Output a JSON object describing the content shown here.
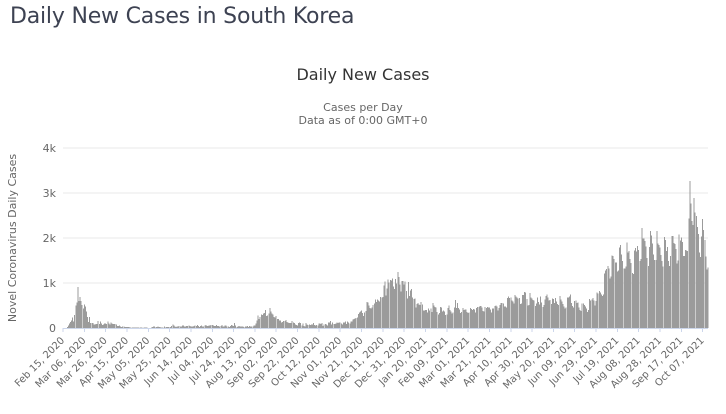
{
  "page": {
    "title": "Daily New Cases in South Korea"
  },
  "colors": {
    "page_title": "#3d4252",
    "chart_title": "#333333",
    "subtitle": "#666666",
    "text_muted": "#666666",
    "bar": "#9b9b9b",
    "grid": "#e8e8e8",
    "axis_line": "#ccd6eb",
    "background": "#ffffff"
  },
  "chart_data": {
    "type": "bar",
    "title": "Daily New Cases",
    "subtitle": [
      "Cases per Day",
      "Data as of 0:00 GMT+0"
    ],
    "ylabel": "Novel Coronavirus Daily Cases",
    "xlabel": "",
    "ylim": [
      0,
      4000
    ],
    "grid": true,
    "legend": false,
    "ytick_values": [
      0,
      1000,
      2000,
      3000,
      4000
    ],
    "ytick_labels": [
      "0",
      "1k",
      "2k",
      "3k",
      "4k"
    ],
    "x_unit": "day",
    "x_tick_interval_days": 20,
    "xtick_day_indices": [
      0,
      20,
      40,
      60,
      80,
      100,
      120,
      140,
      160,
      180,
      200,
      220,
      240,
      260,
      280,
      300,
      320,
      340,
      360,
      380,
      400,
      420,
      440,
      460,
      480,
      500,
      520,
      540,
      560,
      580,
      600
    ],
    "xtick_labels": [
      "Feb 15, 2020",
      "Mar 06, 2020",
      "Mar 26, 2020",
      "Apr 15, 2020",
      "May 05, 2020",
      "May 25, 2020",
      "Jun 14, 2020",
      "Jul 04, 2020",
      "Jul 24, 2020",
      "Aug 13, 2020",
      "Sep 02, 2020",
      "Sep 22, 2020",
      "Oct 12, 2020",
      "Nov 01, 2020",
      "Nov 21, 2020",
      "Dec 11, 2020",
      "Dec 31, 2020",
      "Jan 20, 2021",
      "Feb 09, 2021",
      "Mar 01, 2021",
      "Mar 21, 2021",
      "Apr 10, 2021",
      "Apr 30, 2021",
      "May 20, 2021",
      "Jun 09, 2021",
      "Jun 29, 2021",
      "Jul 19, 2021",
      "Aug 08, 2021",
      "Aug 28, 2021",
      "Sep 17, 2021",
      "Oct 07, 2021"
    ],
    "series_name": "Novel Coronavirus Daily Cases",
    "values_start_label": "Feb 15, 2020",
    "values": [
      2,
      1,
      1,
      2,
      21,
      52,
      101,
      130,
      169,
      231,
      144,
      285,
      505,
      571,
      909,
      595,
      686,
      600,
      516,
      438,
      518,
      483,
      367,
      248,
      131,
      242,
      114,
      110,
      107,
      76,
      74,
      84,
      93,
      152,
      87,
      147,
      98,
      64,
      76,
      100,
      104,
      91,
      146,
      105,
      78,
      125,
      101,
      89,
      86,
      94,
      81,
      47,
      47,
      53,
      39,
      27,
      30,
      32,
      25,
      27,
      27,
      22,
      18,
      8,
      8,
      13,
      9,
      11,
      8,
      6,
      10,
      10,
      10,
      14,
      9,
      4,
      9,
      6,
      13,
      8,
      3,
      2,
      4,
      12,
      18,
      34,
      35,
      27,
      26,
      29,
      27,
      19,
      13,
      15,
      13,
      32,
      12,
      20,
      23,
      25,
      16,
      19,
      40,
      79,
      58,
      39,
      27,
      35,
      38,
      49,
      39,
      39,
      51,
      57,
      38,
      38,
      50,
      45,
      56,
      48,
      34,
      37,
      34,
      43,
      59,
      49,
      67,
      48,
      17,
      46,
      51,
      28,
      39,
      51,
      62,
      42,
      43,
      51,
      54,
      63,
      63,
      61,
      48,
      44,
      63,
      50,
      45,
      35,
      44,
      62,
      33,
      39,
      61,
      60,
      34,
      34,
      26,
      45,
      63,
      59,
      41,
      113,
      58,
      25,
      28,
      48,
      36,
      31,
      31,
      30,
      23,
      34,
      33,
      43,
      20,
      43,
      36,
      28,
      34,
      54,
      56,
      103,
      166,
      279,
      197,
      246,
      297,
      288,
      324,
      332,
      397,
      266,
      280,
      320,
      441,
      371,
      323,
      299,
      248,
      235,
      267,
      195,
      198,
      168,
      167,
      119,
      136,
      156,
      155,
      176,
      136,
      121,
      109,
      106,
      113,
      153,
      126,
      110,
      82,
      70,
      61,
      110,
      125,
      114,
      61,
      95,
      50,
      38,
      113,
      77,
      63,
      75,
      64,
      73,
      75,
      114,
      69,
      54,
      72,
      58,
      97,
      102,
      84,
      110,
      47,
      73,
      91,
      76,
      58,
      119,
      121,
      155,
      77,
      119,
      94,
      88,
      103,
      125,
      114,
      127,
      124,
      97,
      75,
      118,
      125,
      145,
      89,
      143,
      126,
      100,
      146,
      143,
      191,
      205,
      208,
      222,
      230,
      313,
      343,
      363,
      386,
      330,
      271,
      349,
      382,
      583,
      569,
      503,
      450,
      438,
      451,
      511,
      540,
      629,
      583,
      631,
      615,
      594,
      686,
      682,
      689,
      950,
      1030,
      718,
      880,
      1078,
      1014,
      1062,
      1053,
      1097,
      926,
      869,
      1092,
      985,
      1241,
      1132,
      970,
      808,
      1045,
      1050,
      967,
      1029,
      820,
      657,
      1020,
      714,
      838,
      869,
      674,
      641,
      657,
      451,
      537,
      561,
      524,
      512,
      580,
      520,
      389,
      386,
      404,
      400,
      346,
      431,
      392,
      437,
      354,
      559,
      497,
      469,
      458,
      355,
      305,
      336,
      467,
      451,
      370,
      393,
      372,
      289,
      303,
      444,
      504,
      403,
      362,
      326,
      344,
      457,
      621,
      446,
      561,
      448,
      416,
      332,
      357,
      440,
      396,
      406,
      415,
      355,
      335,
      344,
      444,
      424,
      398,
      418,
      416,
      346,
      446,
      470,
      465,
      488,
      490,
      459,
      382,
      363,
      469,
      445,
      463,
      452,
      456,
      415,
      346,
      428,
      430,
      494,
      505,
      482,
      384,
      447,
      506,
      551,
      557,
      543,
      473,
      477,
      460,
      668,
      700,
      671,
      677,
      614,
      587,
      542,
      731,
      698,
      673,
      658,
      672,
      532,
      549,
      731,
      735,
      797,
      785,
      644,
      499,
      512,
      775,
      680,
      661,
      627,
      606,
      488,
      541,
      676,
      574,
      525,
      701,
      564,
      463,
      511,
      635,
      715,
      747,
      681,
      610,
      619,
      528,
      654,
      646,
      561,
      666,
      585,
      538,
      516,
      707,
      629,
      587,
      533,
      480,
      430,
      459,
      677,
      681,
      695,
      744,
      556,
      485,
      454,
      602,
      611,
      556,
      565,
      452,
      399,
      374,
      545,
      540,
      507,
      482,
      429,
      357,
      395,
      645,
      610,
      634,
      668,
      614,
      501,
      595,
      794,
      762,
      826,
      794,
      743,
      711,
      746,
      1212,
      1275,
      1316,
      1378,
      1324,
      1100,
      1150,
      1615,
      1600,
      1536,
      1455,
      1454,
      1252,
      1278,
      1784,
      1842,
      1630,
      1487,
      1318,
      1319,
      1365,
      1896,
      1674,
      1710,
      1539,
      1442,
      1219,
      1202,
      1725,
      1776,
      1704,
      1823,
      1729,
      1492,
      1537,
      2223,
      1987,
      1990,
      1930,
      1816,
      1556,
      1373,
      1805,
      2152,
      2052,
      1880,
      1628,
      1509,
      1507,
      2155,
      1882,
      1841,
      1792,
      1619,
      1487,
      1372,
      2025,
      1961,
      1709,
      1804,
      1490,
      1375,
      1597,
      2050,
      2049,
      1892,
      1865,
      1755,
      1433,
      1497,
      2080,
      1943,
      2008,
      1910,
      1604,
      1605,
      1729,
      1720,
      1716,
      2434,
      3271,
      2771,
      2383,
      2289,
      2885,
      2564,
      2486,
      2248,
      2086,
      1673,
      1575,
      2028,
      2425,
      2175,
      1953,
      1594,
      1297,
      1347
    ]
  }
}
